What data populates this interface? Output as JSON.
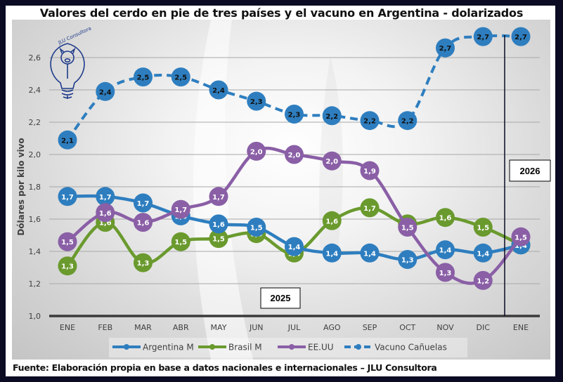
{
  "chart_data": {
    "type": "line",
    "title": "Valores del cerdo en pie de tres países y el vacuno en Argentina - dolarizados",
    "xlabel": "",
    "ylabel": "Dólares por kilo vivo",
    "ylim": [
      1.0,
      2.7
    ],
    "yticks": [
      "1,0",
      "1,2",
      "1,4",
      "1,6",
      "1,8",
      "2,0",
      "2,2",
      "2,4",
      "2,6"
    ],
    "ytick_values": [
      1.0,
      1.2,
      1.4,
      1.6,
      1.8,
      2.0,
      2.2,
      2.4,
      2.6
    ],
    "grid": true,
    "categories": [
      "ENE",
      "FEB",
      "MAR",
      "ABR",
      "MAY",
      "JUN",
      "JUL",
      "AGO",
      "SEP",
      "OCT",
      "NOV",
      "DIC",
      "ENE"
    ],
    "series": [
      {
        "name": "Argentina M",
        "color": "#2e7ebf",
        "style": "solid",
        "values": [
          1.74,
          1.74,
          1.7,
          1.62,
          1.57,
          1.55,
          1.43,
          1.39,
          1.39,
          1.35,
          1.41,
          1.39,
          1.44
        ],
        "labels": [
          "1,7",
          "1,7",
          "1,7",
          "1,6",
          "1,6",
          "1,5",
          "1,4",
          "1,4",
          "1,4",
          "1,3",
          "1,4",
          "1,4",
          "1,4"
        ]
      },
      {
        "name": "Brasil M",
        "color": "#6a9a2e",
        "style": "solid",
        "values": [
          1.31,
          1.58,
          1.33,
          1.46,
          1.48,
          1.51,
          1.39,
          1.59,
          1.67,
          1.57,
          1.61,
          1.55,
          1.44
        ],
        "labels": [
          "1,3",
          "1,6",
          "1,3",
          "1,5",
          "1,5",
          "1,5",
          "1,4",
          "1,6",
          "1,7",
          "1,6",
          "1,6",
          "1,5",
          "1,4"
        ]
      },
      {
        "name": "EE.UU",
        "color": "#8a5fa6",
        "style": "solid",
        "values": [
          1.46,
          1.64,
          1.58,
          1.66,
          1.74,
          2.02,
          2.0,
          1.96,
          1.9,
          1.55,
          1.27,
          1.22,
          1.49
        ],
        "labels": [
          "1,5",
          "1,6",
          "1,6",
          "1,7",
          "1,7",
          "2,0",
          "2,0",
          "2,0",
          "1,9",
          "1,5",
          "1,3",
          "1,2",
          "1,5"
        ]
      },
      {
        "name": "Vacuno Cañuelas",
        "color": "#2e7ebf",
        "style": "dashed",
        "values": [
          2.09,
          2.39,
          2.48,
          2.48,
          2.4,
          2.33,
          2.25,
          2.24,
          2.21,
          2.21,
          2.66,
          2.73,
          2.73
        ],
        "labels": [
          "2,1",
          "2,4",
          "2,5",
          "2,5",
          "2,4",
          "2,3",
          "2,3",
          "2,2",
          "2,2",
          "2,2",
          "2,7",
          "2,7",
          "2,7"
        ]
      }
    ],
    "annotations": [
      "2025",
      "2026"
    ],
    "year_divider_between": [
      "DIC",
      "ENE"
    ],
    "legend_position": "bottom",
    "logo_text": "JLU Consultora"
  },
  "source_note": "Fuente: Elaboración propia en base a datos nacionales e internacionales – JLU Consultora"
}
